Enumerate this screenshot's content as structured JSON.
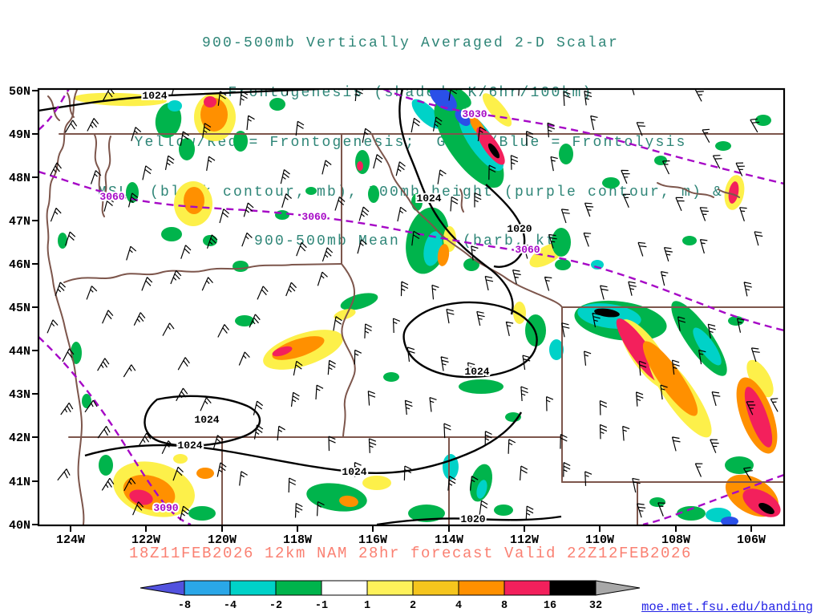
{
  "title": {
    "color": "#2e8577",
    "lines": [
      "900-500mb Vertically Averaged 2-D Scalar",
      "Frontogenesis (shaded, K/6hr/100km)",
      "Yellow/Red = Frontogenesis;  Green/Blue = Frontolysis",
      "MSLP (black contour, mb), 700mb height (purple contour, m) &",
      "900-500mb Mean Wind (barb, kt)"
    ]
  },
  "map": {
    "lat_labels": [
      "50N",
      "49N",
      "48N",
      "47N",
      "46N",
      "45N",
      "44N",
      "43N",
      "42N",
      "41N",
      "40N"
    ],
    "lon_labels": [
      "124W",
      "122W",
      "120W",
      "118W",
      "116W",
      "114W",
      "112W",
      "110W",
      "108W",
      "106W"
    ],
    "mslp_labels": [
      "1024",
      "1024",
      "1020",
      "1024",
      "1024",
      "1024",
      "1024",
      "1020"
    ],
    "height_labels": [
      "3030",
      "3060",
      "3060",
      "3060",
      "3090"
    ],
    "border_color": "#7d564c",
    "mslp_contour_color": "#000000",
    "height_contour_color": "#a608c6"
  },
  "footer": {
    "caption": "18Z11FEB2026 12km NAM 28hr forecast Valid 22Z12FEB2026",
    "caption_color": "#fa8072",
    "link": "moe.met.fsu.edu/banding",
    "link_color": "#2323e6"
  },
  "colorbar": {
    "tick_labels": [
      "-8",
      "-4",
      "-2",
      "-1",
      "1",
      "2",
      "4",
      "8",
      "16",
      "32"
    ],
    "segment_colors": [
      "#2aa7e8",
      "#00d2c8",
      "#00b44c",
      "#ffffff",
      "#fef25a",
      "#f5c51d",
      "#ff9000",
      "#f3205c",
      "#000000"
    ],
    "left_arrow_color": "#5252de",
    "right_arrow_color": "#a8a8a8"
  },
  "chart_data": {
    "type": "map",
    "title": "900-500mb Vertically Averaged 2-D Scalar Frontogenesis",
    "region": "Northwestern United States",
    "lat_range": [
      "40N",
      "50N"
    ],
    "lon_range": [
      "124W",
      "106W"
    ],
    "shading_units": "K/6hr/100km",
    "shading_levels": [
      -8,
      -4,
      -2,
      -1,
      1,
      2,
      4,
      8,
      16,
      32
    ],
    "shading_meaning": {
      "yellow_red": "Frontogenesis",
      "green_blue": "Frontolysis"
    },
    "mslp_contours_mb": [
      1020,
      1024
    ],
    "height_contours_m": [
      3030,
      3060,
      3090
    ],
    "wind_field": "900-500mb Mean Wind (barb, kt)",
    "model_run": "18Z11FEB2026",
    "model": "12km NAM",
    "forecast_hour": "28hr",
    "valid_time": "22Z12FEB2026"
  }
}
